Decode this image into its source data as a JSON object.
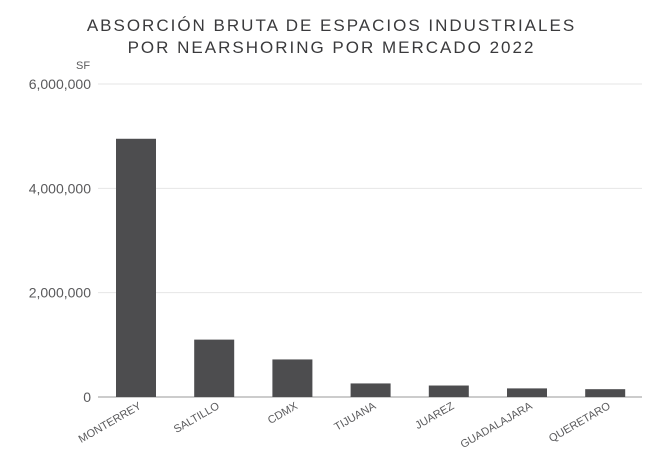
{
  "chart_data": {
    "type": "bar",
    "title_lines": [
      "ABSORCIÓN BRUTA DE ESPACIOS INDUSTRIALES",
      "POR NEARSHORING POR MERCADO 2022"
    ],
    "ylabel": "SF",
    "xlabel": "",
    "categories": [
      "MONTERREY",
      "SALTILLO",
      "CDMX",
      "TIJUANA",
      "JUAREZ",
      "GUADALAJARA",
      "QUERETARO"
    ],
    "values": [
      4950000,
      1100000,
      720000,
      260000,
      220000,
      165000,
      150000
    ],
    "ylim": [
      0,
      6000000
    ],
    "yticks": [
      0,
      2000000,
      4000000,
      6000000
    ],
    "ytick_labels": [
      "0",
      "2,000,000",
      "4,000,000",
      "6,000,000"
    ],
    "grid": true,
    "bar_color": "#4d4d4f",
    "grid_color": "#e6e6e6",
    "text_color": "#5a5a5c"
  }
}
